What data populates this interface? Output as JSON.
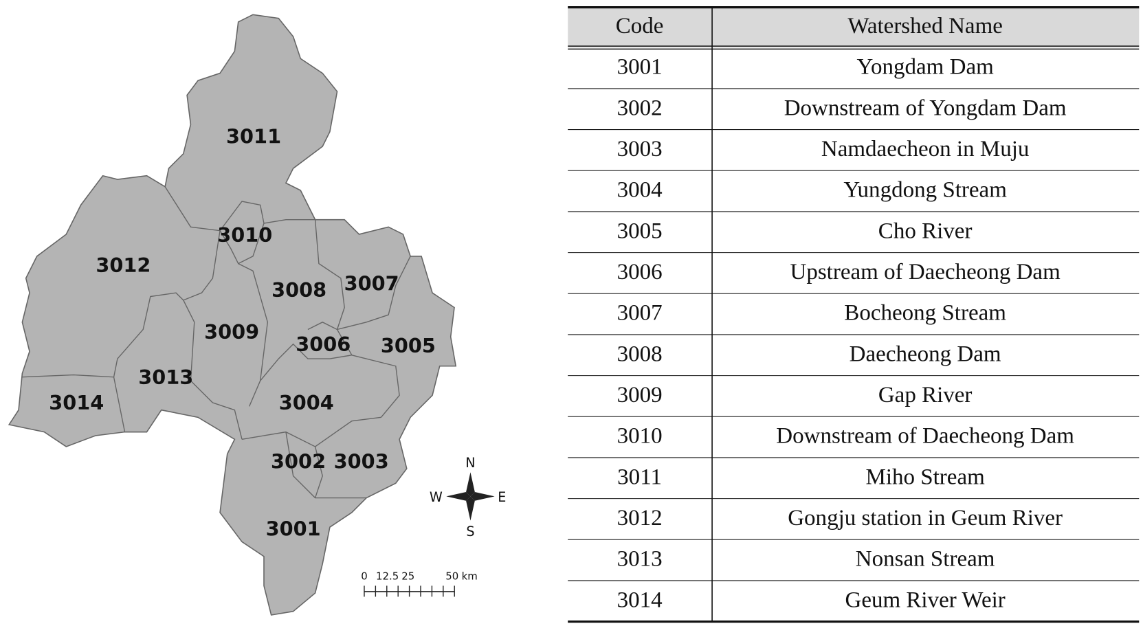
{
  "map": {
    "regions": [
      "3011",
      "3010",
      "3012",
      "3008",
      "3007",
      "3009",
      "3006",
      "3005",
      "3013",
      "3014",
      "3004",
      "3002",
      "3003",
      "3001"
    ],
    "compass": {
      "north": "N",
      "west": "W",
      "east": "E",
      "south": "S"
    },
    "scale_bar": {
      "labels": [
        "0",
        "12.5",
        "25",
        "50"
      ],
      "unit": "km"
    }
  },
  "table": {
    "header": [
      "Code",
      "Watershed Name"
    ],
    "rows": [
      [
        "3001",
        "Yongdam Dam"
      ],
      [
        "3002",
        "Downstream of Yongdam Dam"
      ],
      [
        "3003",
        "Namdaecheon in Muju"
      ],
      [
        "3004",
        "Yungdong Stream"
      ],
      [
        "3005",
        "Cho River"
      ],
      [
        "3006",
        "Upstream of Daecheong Dam"
      ],
      [
        "3007",
        "Bocheong Stream"
      ],
      [
        "3008",
        "Daecheong Dam"
      ],
      [
        "3009",
        "Gap River"
      ],
      [
        "3010",
        "Downstream of Daecheong Dam"
      ],
      [
        "3011",
        "Miho Stream"
      ],
      [
        "3012",
        "Gongju station in Geum River"
      ],
      [
        "3013",
        "Nonsan Stream"
      ],
      [
        "3014",
        "Geum River Weir"
      ]
    ]
  }
}
